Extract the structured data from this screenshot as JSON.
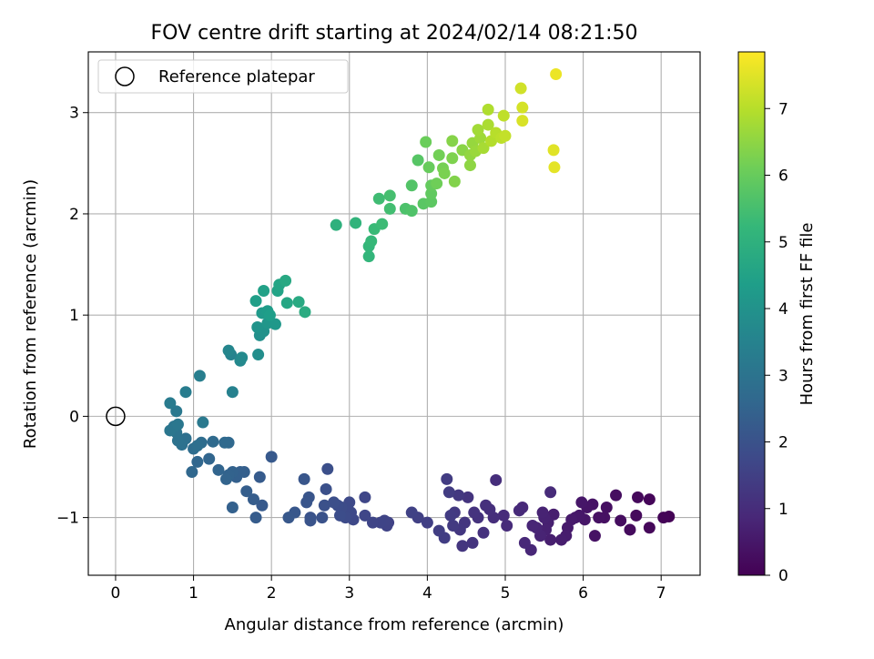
{
  "chart_data": {
    "type": "scatter",
    "title": "FOV centre drift starting at 2024/02/14 08:21:50",
    "xlabel": "Angular distance from reference (arcmin)",
    "ylabel": "Rotation from reference (arcmin)",
    "xlim": [
      -0.35,
      7.5
    ],
    "ylim": [
      -1.57,
      3.6
    ],
    "x_ticks": [
      0,
      1,
      2,
      3,
      4,
      5,
      6,
      7
    ],
    "x_tick_labels": [
      "0",
      "1",
      "2",
      "3",
      "4",
      "5",
      "6",
      "7"
    ],
    "y_ticks": [
      -1,
      0,
      1,
      2,
      3
    ],
    "y_tick_labels": [
      "−1",
      "0",
      "1",
      "2",
      "3"
    ],
    "grid": true,
    "legend": {
      "position": "top-left",
      "entries": [
        "Reference platepar"
      ]
    },
    "reference_point": {
      "x": 0,
      "y": 0,
      "marker": "open-circle"
    },
    "colorbar": {
      "label": "Hours from first FF file",
      "colormap": "viridis",
      "range": [
        0,
        7.85
      ],
      "ticks": [
        0,
        1,
        2,
        3,
        4,
        5,
        6,
        7
      ],
      "tick_labels": [
        "0",
        "1",
        "2",
        "3",
        "4",
        "5",
        "6",
        "7"
      ]
    },
    "colormap_stops": [
      "#440154",
      "#482878",
      "#3e4989",
      "#31688e",
      "#26828e",
      "#1f9e89",
      "#35b779",
      "#6ece58",
      "#b5de2b",
      "#fde725"
    ],
    "points": [
      [
        7.1,
        -0.99,
        0.05
      ],
      [
        7.03,
        -1.0,
        0.08
      ],
      [
        6.85,
        -0.82,
        0.12
      ],
      [
        6.85,
        -1.1,
        0.15
      ],
      [
        6.7,
        -0.8,
        0.18
      ],
      [
        6.68,
        -0.98,
        0.2
      ],
      [
        6.6,
        -1.12,
        0.23
      ],
      [
        6.48,
        -1.03,
        0.26
      ],
      [
        6.42,
        -0.78,
        0.28
      ],
      [
        6.3,
        -0.9,
        0.31
      ],
      [
        6.27,
        -1.0,
        0.33
      ],
      [
        6.2,
        -1.0,
        0.36
      ],
      [
        6.15,
        -1.18,
        0.38
      ],
      [
        6.12,
        -0.87,
        0.41
      ],
      [
        6.05,
        -0.9,
        0.43
      ],
      [
        6.02,
        -1.02,
        0.46
      ],
      [
        5.98,
        -0.85,
        0.48
      ],
      [
        5.95,
        -0.98,
        0.5
      ],
      [
        5.9,
        -1.0,
        0.52
      ],
      [
        5.85,
        -1.02,
        0.55
      ],
      [
        5.8,
        -1.1,
        0.57
      ],
      [
        5.78,
        -1.18,
        0.6
      ],
      [
        5.72,
        -1.22,
        0.62
      ],
      [
        5.62,
        -0.97,
        0.64
      ],
      [
        5.58,
        -1.22,
        0.66
      ],
      [
        5.55,
        -1.05,
        0.69
      ],
      [
        5.52,
        -1.12,
        0.71
      ],
      [
        5.5,
        -1.0,
        0.73
      ],
      [
        5.48,
        -0.95,
        0.76
      ],
      [
        5.45,
        -1.18,
        0.78
      ],
      [
        5.4,
        -1.1,
        0.8
      ],
      [
        5.35,
        -1.08,
        0.82
      ],
      [
        5.33,
        -1.32,
        0.85
      ],
      [
        5.25,
        -1.25,
        0.87
      ],
      [
        5.22,
        -0.9,
        0.89
      ],
      [
        5.18,
        -0.93,
        0.92
      ],
      [
        5.58,
        -0.75,
        0.94
      ],
      [
        5.02,
        -1.08,
        0.97
      ],
      [
        4.98,
        -0.98,
        0.99
      ],
      [
        4.88,
        -0.63,
        1.02
      ],
      [
        4.85,
        -1.0,
        1.04
      ],
      [
        4.8,
        -0.92,
        1.06
      ],
      [
        4.75,
        -0.88,
        1.09
      ],
      [
        4.72,
        -1.15,
        1.11
      ],
      [
        4.65,
        -1.0,
        1.13
      ],
      [
        4.6,
        -0.95,
        1.16
      ],
      [
        4.58,
        -1.25,
        1.18
      ],
      [
        4.52,
        -0.8,
        1.2
      ],
      [
        4.48,
        -1.05,
        1.23
      ],
      [
        4.45,
        -1.28,
        1.25
      ],
      [
        4.42,
        -1.12,
        1.27
      ],
      [
        4.4,
        -0.78,
        1.3
      ],
      [
        4.35,
        -0.95,
        1.32
      ],
      [
        4.33,
        -1.08,
        1.34
      ],
      [
        4.3,
        -0.98,
        1.37
      ],
      [
        4.28,
        -0.75,
        1.39
      ],
      [
        4.25,
        -0.62,
        1.41
      ],
      [
        4.22,
        -1.2,
        1.44
      ],
      [
        4.15,
        -1.13,
        1.46
      ],
      [
        4.0,
        -1.05,
        1.48
      ],
      [
        3.88,
        -1.0,
        1.51
      ],
      [
        3.8,
        -0.95,
        1.53
      ],
      [
        3.5,
        -1.05,
        1.55
      ],
      [
        3.48,
        -1.08,
        1.58
      ],
      [
        3.45,
        -1.03,
        1.6
      ],
      [
        3.4,
        -1.05,
        1.62
      ],
      [
        3.3,
        -1.05,
        1.64
      ],
      [
        3.2,
        -0.98,
        1.67
      ],
      [
        3.2,
        -0.8,
        1.69
      ],
      [
        3.05,
        -1.02,
        1.71
      ],
      [
        3.02,
        -0.95,
        1.74
      ],
      [
        3.0,
        -0.85,
        1.76
      ],
      [
        2.98,
        -0.92,
        1.78
      ],
      [
        2.95,
        -1.0,
        1.8
      ],
      [
        2.9,
        -0.9,
        1.83
      ],
      [
        2.88,
        -0.98,
        1.85
      ],
      [
        2.85,
        -0.88,
        1.87
      ],
      [
        2.8,
        -0.85,
        1.9
      ],
      [
        2.72,
        -0.52,
        1.92
      ],
      [
        2.7,
        -0.72,
        1.95
      ],
      [
        2.68,
        -0.88,
        1.97
      ],
      [
        2.65,
        -1.0,
        1.99
      ],
      [
        2.5,
        -1.0,
        2.02
      ],
      [
        2.5,
        -1.03,
        2.04
      ],
      [
        2.48,
        -0.8,
        2.07
      ],
      [
        2.45,
        -0.85,
        2.09
      ],
      [
        2.42,
        -0.62,
        2.11
      ],
      [
        2.3,
        -0.95,
        2.14
      ],
      [
        2.22,
        -1.0,
        2.16
      ],
      [
        2.0,
        -0.4,
        2.19
      ],
      [
        1.88,
        -0.88,
        2.22
      ],
      [
        1.85,
        -0.6,
        2.25
      ],
      [
        1.8,
        -1.0,
        2.28
      ],
      [
        1.77,
        -0.82,
        2.3
      ],
      [
        1.68,
        -0.74,
        2.33
      ],
      [
        1.65,
        -0.55,
        2.35
      ],
      [
        1.6,
        -0.55,
        2.38
      ],
      [
        1.55,
        -0.6,
        2.4
      ],
      [
        1.5,
        -0.9,
        2.43
      ],
      [
        1.5,
        -0.55,
        2.45
      ],
      [
        1.45,
        -0.58,
        2.48
      ],
      [
        1.42,
        -0.62,
        2.51
      ],
      [
        1.32,
        -0.53,
        2.54
      ],
      [
        1.2,
        -0.42,
        2.57
      ],
      [
        1.05,
        -0.45,
        2.6
      ],
      [
        0.98,
        -0.55,
        2.63
      ],
      [
        1.45,
        -0.26,
        2.66
      ],
      [
        1.4,
        -0.26,
        2.7
      ],
      [
        1.25,
        -0.25,
        2.73
      ],
      [
        1.1,
        -0.26,
        2.77
      ],
      [
        1.0,
        -0.32,
        2.8
      ],
      [
        1.05,
        -0.29,
        2.84
      ],
      [
        0.9,
        -0.22,
        2.88
      ],
      [
        0.85,
        -0.28,
        2.92
      ],
      [
        0.8,
        -0.24,
        2.96
      ],
      [
        0.78,
        -0.16,
        3.0
      ],
      [
        0.75,
        -0.1,
        3.04
      ],
      [
        0.7,
        -0.14,
        3.08
      ],
      [
        0.8,
        -0.08,
        3.12
      ],
      [
        0.78,
        0.05,
        3.16
      ],
      [
        1.12,
        -0.06,
        3.2
      ],
      [
        0.7,
        0.13,
        3.25
      ],
      [
        0.9,
        0.24,
        3.3
      ],
      [
        1.08,
        0.4,
        3.36
      ],
      [
        1.5,
        0.24,
        3.45
      ],
      [
        1.48,
        0.61,
        3.52
      ],
      [
        1.45,
        0.65,
        3.6
      ],
      [
        1.6,
        0.55,
        3.68
      ],
      [
        1.62,
        0.58,
        3.74
      ],
      [
        1.83,
        0.61,
        3.85
      ],
      [
        1.85,
        0.8,
        3.92
      ],
      [
        1.9,
        0.84,
        3.98
      ],
      [
        1.82,
        0.88,
        4.05
      ],
      [
        1.95,
        0.92,
        4.12
      ],
      [
        2.05,
        0.91,
        4.18
      ],
      [
        1.88,
        1.02,
        4.25
      ],
      [
        1.95,
        1.04,
        4.3
      ],
      [
        1.98,
        1.0,
        4.35
      ],
      [
        1.8,
        1.14,
        4.4
      ],
      [
        1.9,
        1.24,
        4.47
      ],
      [
        2.08,
        1.24,
        4.52
      ],
      [
        2.1,
        1.3,
        4.58
      ],
      [
        2.2,
        1.12,
        4.64
      ],
      [
        2.18,
        1.34,
        4.7
      ],
      [
        2.35,
        1.13,
        4.76
      ],
      [
        2.43,
        1.03,
        4.82
      ],
      [
        2.83,
        1.89,
        5.0
      ],
      [
        3.08,
        1.91,
        5.1
      ],
      [
        3.25,
        1.58,
        5.15
      ],
      [
        3.25,
        1.68,
        5.2
      ],
      [
        3.28,
        1.73,
        5.25
      ],
      [
        3.32,
        1.85,
        5.3
      ],
      [
        3.42,
        1.9,
        5.35
      ],
      [
        3.38,
        2.15,
        5.4
      ],
      [
        3.52,
        2.05,
        5.45
      ],
      [
        3.52,
        2.18,
        5.5
      ],
      [
        3.72,
        2.05,
        5.6
      ],
      [
        3.8,
        2.03,
        5.65
      ],
      [
        3.8,
        2.28,
        5.7
      ],
      [
        3.88,
        2.53,
        5.75
      ],
      [
        3.95,
        2.1,
        5.8
      ],
      [
        4.05,
        2.12,
        5.85
      ],
      [
        4.05,
        2.2,
        5.9
      ],
      [
        4.05,
        2.28,
        5.95
      ],
      [
        4.02,
        2.46,
        6.0
      ],
      [
        3.98,
        2.71,
        6.05
      ],
      [
        4.12,
        2.3,
        6.1
      ],
      [
        4.15,
        2.58,
        6.15
      ],
      [
        4.2,
        2.45,
        6.2
      ],
      [
        4.22,
        2.4,
        6.25
      ],
      [
        4.32,
        2.55,
        6.3
      ],
      [
        4.35,
        2.32,
        6.35
      ],
      [
        4.32,
        2.72,
        6.4
      ],
      [
        4.45,
        2.63,
        6.45
      ],
      [
        4.55,
        2.48,
        6.5
      ],
      [
        4.55,
        2.58,
        6.55
      ],
      [
        4.58,
        2.7,
        6.6
      ],
      [
        4.62,
        2.62,
        6.65
      ],
      [
        4.68,
        2.75,
        6.7
      ],
      [
        4.65,
        2.83,
        6.75
      ],
      [
        4.72,
        2.65,
        6.8
      ],
      [
        4.78,
        2.88,
        6.85
      ],
      [
        4.78,
        3.03,
        6.9
      ],
      [
        4.82,
        2.72,
        6.95
      ],
      [
        4.88,
        2.8,
        7.0
      ],
      [
        4.95,
        2.75,
        7.05
      ],
      [
        4.98,
        2.97,
        7.1
      ],
      [
        5.0,
        2.77,
        7.15
      ],
      [
        5.2,
        3.24,
        7.3
      ],
      [
        5.22,
        3.05,
        7.35
      ],
      [
        5.22,
        2.92,
        7.4
      ],
      [
        5.62,
        2.63,
        7.5
      ],
      [
        5.63,
        2.46,
        7.55
      ],
      [
        5.65,
        3.38,
        7.65
      ]
    ]
  }
}
